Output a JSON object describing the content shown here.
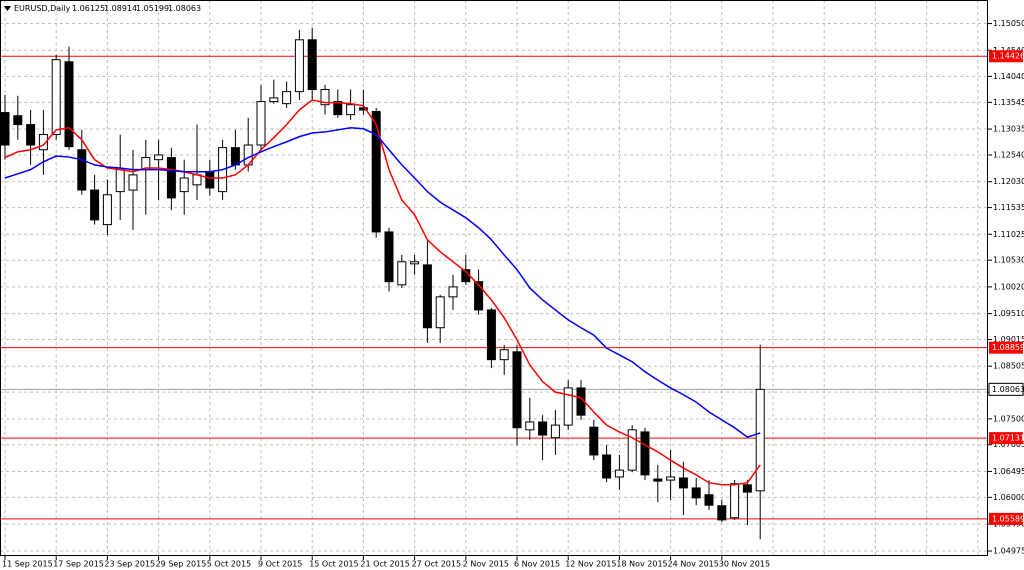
{
  "chart_data": {
    "type": "candlestick",
    "title": "EURUSD,Daily",
    "categories": [
      "11 Sep 2015",
      null,
      null,
      null,
      "17 Sep 2015",
      null,
      null,
      null,
      "23 Sep 2015",
      null,
      null,
      null,
      "29 Sep 2015",
      null,
      null,
      null,
      "5 Oct 2015",
      null,
      null,
      null,
      "9 Oct 2015",
      null,
      null,
      null,
      "15 Oct 2015",
      null,
      null,
      null,
      "21 Oct 2015",
      null,
      null,
      null,
      "27 Oct 2015",
      null,
      null,
      null,
      "2 Nov 2015",
      null,
      null,
      null,
      "6 Nov 2015",
      null,
      null,
      null,
      "12 Nov 2015",
      null,
      null,
      null,
      "18 Nov 2015",
      null,
      null,
      null,
      "24 Nov 2015",
      null,
      null,
      null,
      "30 Nov 2015",
      null,
      null,
      null
    ],
    "open": [
      1.1335,
      1.1329,
      1.1312,
      1.1264,
      1.1293,
      1.1432,
      1.1264,
      1.1187,
      1.1121,
      1.1184,
      1.1187,
      1.1226,
      1.1245,
      1.1249,
      1.1184,
      1.1197,
      1.1222,
      1.1184,
      1.1268,
      1.1235,
      1.1273,
      1.1356,
      1.1352,
      1.1375,
      1.1474,
      1.135,
      1.1356,
      1.1331,
      1.1344,
      1.1337,
      1.1107,
      1.1006,
      1.1046,
      1.1044,
      1.0924,
      1.0983,
      1.1035,
      1.1012,
      1.0958,
      1.0863,
      1.0878,
      1.0729,
      1.0744,
      1.0714,
      1.0738,
      1.0809,
      1.0734,
      1.0681,
      1.0639,
      1.0652,
      1.0725,
      1.0635,
      1.0633,
      1.0637,
      1.0618,
      1.0605,
      1.0584,
      1.0561,
      1.0624,
      1.06125
    ],
    "high": [
      1.1369,
      1.1367,
      1.134,
      1.134,
      1.1445,
      1.1461,
      1.1302,
      1.1216,
      1.1207,
      1.1293,
      1.1264,
      1.1283,
      1.1283,
      1.1268,
      1.1245,
      1.1312,
      1.1245,
      1.1283,
      1.1302,
      1.1325,
      1.1388,
      1.1398,
      1.1394,
      1.1493,
      1.1497,
      1.1388,
      1.1379,
      1.1379,
      1.1379,
      1.1344,
      1.1115,
      1.1063,
      1.1063,
      1.1092,
      1.0987,
      1.1025,
      1.1063,
      1.1035,
      1.0962,
      1.0891,
      1.0891,
      1.079,
      1.0757,
      1.0767,
      1.0824,
      1.0824,
      1.0748,
      1.07,
      1.0681,
      1.0738,
      1.0733,
      1.0662,
      1.0691,
      1.0668,
      1.0637,
      1.0633,
      1.0595,
      1.0633,
      1.0633,
      1.08914
    ],
    "low": [
      1.1245,
      1.1283,
      1.1235,
      1.1216,
      1.1283,
      1.1264,
      1.1178,
      1.1121,
      1.1101,
      1.113,
      1.1111,
      1.114,
      1.1168,
      1.1149,
      1.114,
      1.1168,
      1.1176,
      1.1168,
      1.1226,
      1.1222,
      1.1264,
      1.1352,
      1.1344,
      1.1359,
      1.1359,
      1.1331,
      1.1325,
      1.1321,
      1.1331,
      1.1096,
      1.0993,
      1.1,
      1.1025,
      1.0895,
      1.0895,
      1.0958,
      1.1006,
      1.0949,
      1.0847,
      1.0834,
      1.07,
      1.071,
      1.0671,
      1.0681,
      1.0729,
      1.0748,
      1.0671,
      1.0629,
      1.0614,
      1.0648,
      1.0633,
      1.0591,
      1.0595,
      1.0566,
      1.0585,
      1.0576,
      1.0553,
      1.0557,
      1.0547,
      1.05199
    ],
    "close": [
      1.1273,
      1.1312,
      1.1273,
      1.1293,
      1.1436,
      1.127,
      1.1187,
      1.113,
      1.1178,
      1.1226,
      1.1216,
      1.1249,
      1.1254,
      1.1172,
      1.121,
      1.1216,
      1.1191,
      1.1268,
      1.1235,
      1.1273,
      1.1356,
      1.1363,
      1.1375,
      1.1474,
      1.1379,
      1.1379,
      1.1331,
      1.135,
      1.134,
      1.1107,
      1.1012,
      1.105,
      1.105,
      1.0924,
      1.0983,
      1.1002,
      1.1012,
      1.0958,
      1.0863,
      1.0882,
      1.0733,
      1.0744,
      1.0719,
      1.0738,
      1.0809,
      1.0757,
      1.0681,
      1.0637,
      1.0652,
      1.0729,
      1.0643,
      1.0631,
      1.0639,
      1.0618,
      1.0599,
      1.0585,
      1.0557,
      1.0626,
      1.061,
      1.08063
    ],
    "up_color": "#ffffff",
    "down_color": "#000000",
    "series": [
      {
        "color": "#ff0000",
        "values": [
          1.1249,
          1.126,
          1.1264,
          1.1273,
          1.1302,
          1.1306,
          1.1283,
          1.1245,
          1.1229,
          1.1226,
          1.1222,
          1.1229,
          1.1229,
          1.1226,
          1.1222,
          1.1216,
          1.121,
          1.121,
          1.1216,
          1.1235,
          1.1264,
          1.1287,
          1.1312,
          1.134,
          1.1359,
          1.1354,
          1.1354,
          1.1352,
          1.1348,
          1.1312,
          1.1226,
          1.1168,
          1.114,
          1.1092,
          1.1069,
          1.105,
          1.1031,
          1.1006,
          1.0977,
          1.0943,
          1.0901,
          1.0853,
          1.0821,
          1.0801,
          1.0796,
          1.079,
          1.0763,
          1.0738,
          1.0725,
          1.0714,
          1.07,
          1.0687,
          1.0671,
          1.0656,
          1.0643,
          1.0628,
          1.0624,
          1.0624,
          1.0628,
          1.0662
        ]
      },
      {
        "color": "#0000ff",
        "values": [
          1.121,
          1.1218,
          1.1226,
          1.1241,
          1.1252,
          1.125,
          1.1245,
          1.1235,
          1.1231,
          1.1229,
          1.1226,
          1.1226,
          1.1226,
          1.1224,
          1.1222,
          1.1222,
          1.1222,
          1.1226,
          1.1235,
          1.1249,
          1.126,
          1.127,
          1.1279,
          1.1289,
          1.1296,
          1.1298,
          1.1302,
          1.1306,
          1.1304,
          1.1293,
          1.1264,
          1.1235,
          1.121,
          1.1184,
          1.1164,
          1.1149,
          1.1134,
          1.1115,
          1.1092,
          1.1063,
          1.1035,
          1.1,
          1.0977,
          1.0958,
          1.0939,
          1.0924,
          1.091,
          1.0885,
          1.0872,
          1.0859,
          1.084,
          1.0824,
          1.0809,
          1.0796,
          1.0782,
          1.0763,
          1.0748,
          1.0733,
          1.0715,
          1.0723
        ]
      }
    ],
    "levels": [
      {
        "value": 1.14426,
        "color": "#ff0000"
      },
      {
        "value": 1.08859,
        "color": "#ff0000"
      },
      {
        "value": 1.07131,
        "color": "#ff0000"
      },
      {
        "value": 1.05589,
        "color": "#ff0000"
      }
    ],
    "ylim": [
      1.0488,
      1.155
    ],
    "yticks": [
      {
        "value": 1.1505,
        "label": "1.15050"
      },
      {
        "value": 1.1454,
        "label": "1.14540"
      },
      {
        "value": 1.1404,
        "label": "1.14040"
      },
      {
        "value": 1.13545,
        "label": "1.13545"
      },
      {
        "value": 1.13035,
        "label": "1.13035"
      },
      {
        "value": 1.1254,
        "label": "1.12540"
      },
      {
        "value": 1.1203,
        "label": "1.12030"
      },
      {
        "value": 1.11535,
        "label": "1.11535"
      },
      {
        "value": 1.11025,
        "label": "1.11025"
      },
      {
        "value": 1.1053,
        "label": "1.10530"
      },
      {
        "value": 1.1002,
        "label": "1.10020"
      },
      {
        "value": 1.0951,
        "label": "1.09510"
      },
      {
        "value": 1.09015,
        "label": "1.09015"
      },
      {
        "value": 1.08505,
        "label": "1.08505"
      },
      {
        "value": 1.0801,
        "label": "1.08010"
      },
      {
        "value": 1.075,
        "label": "1.07500"
      },
      {
        "value": 1.07005,
        "label": "1.07005"
      },
      {
        "value": 1.06495,
        "label": "1.06495"
      },
      {
        "value": 1.06,
        "label": "1.06000"
      },
      {
        "value": 1.0549,
        "label": "1.05490"
      },
      {
        "value": 1.04975,
        "label": "1.04975"
      }
    ],
    "grid": true
  }
}
